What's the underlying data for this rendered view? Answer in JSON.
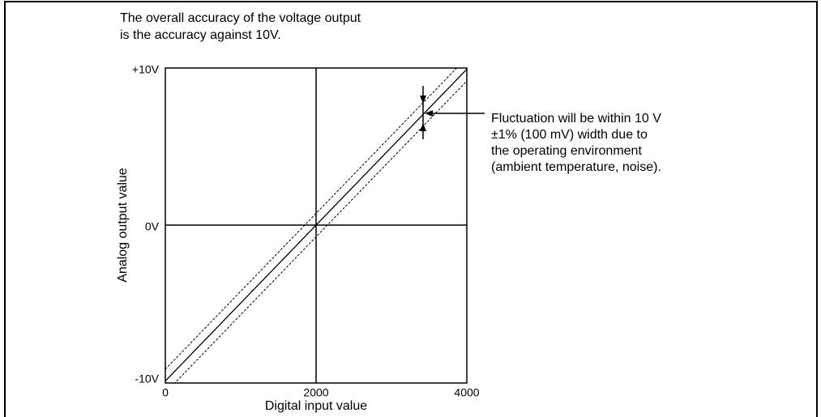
{
  "note": {
    "lines": [
      "The overall accuracy of the voltage output",
      "is the accuracy against 10V."
    ]
  },
  "y_axis": {
    "label": "Analog output value",
    "ticks": [
      "+10V",
      "0V",
      "-10V"
    ]
  },
  "x_axis": {
    "label": "Digital input value",
    "ticks": [
      "0",
      "2000",
      "4000"
    ]
  },
  "annotation": {
    "lines": [
      "Fluctuation will be within 10 V",
      "±1% (100 mV) width due to",
      "the operating environment",
      "(ambient temperature, noise)."
    ]
  }
}
